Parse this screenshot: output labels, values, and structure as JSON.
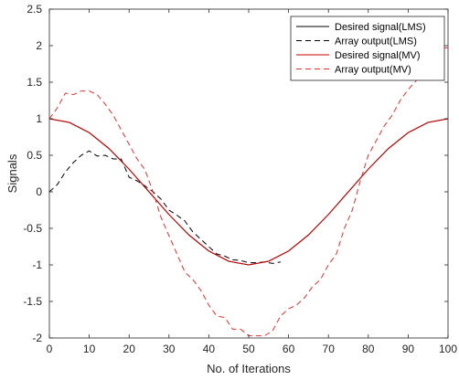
{
  "chart_data": {
    "type": "line",
    "xlabel": "No. of Iterations",
    "ylabel": "Signals",
    "xlim": [
      0,
      100
    ],
    "ylim": [
      -2,
      2.5
    ],
    "xticks": [
      0,
      10,
      20,
      30,
      40,
      50,
      60,
      70,
      80,
      90,
      100
    ],
    "yticks": [
      -2,
      -1.5,
      -1,
      -0.5,
      0,
      0.5,
      1,
      1.5,
      2,
      2.5
    ],
    "grid": false,
    "legend_position": "top-right",
    "series": [
      {
        "name": "Desired signal(LMS)",
        "color": "#000000",
        "style": "solid",
        "x": [
          0,
          5,
          10,
          15,
          20,
          25,
          30,
          35,
          40,
          45,
          50,
          55,
          60,
          65,
          70,
          75,
          80,
          85,
          90,
          95,
          100
        ],
        "y": [
          1,
          0.95,
          0.81,
          0.59,
          0.31,
          0,
          -0.31,
          -0.59,
          -0.81,
          -0.95,
          -1,
          -0.95,
          -0.81,
          -0.59,
          -0.31,
          0,
          0.31,
          0.59,
          0.81,
          0.95,
          1
        ]
      },
      {
        "name": "Array output(LMS)",
        "color": "#000000",
        "style": "dashed",
        "x": [
          0,
          2,
          4,
          6,
          8,
          10,
          12,
          14,
          16,
          18,
          20,
          22,
          24,
          26,
          28,
          30,
          32,
          34,
          36,
          38,
          40,
          42,
          44,
          46,
          48,
          50,
          52,
          54,
          56,
          58
        ],
        "y": [
          0,
          0.1,
          0.27,
          0.4,
          0.5,
          0.56,
          0.49,
          0.5,
          0.45,
          0.45,
          0.2,
          0.15,
          0.08,
          0.0,
          -0.1,
          -0.25,
          -0.32,
          -0.4,
          -0.55,
          -0.65,
          -0.75,
          -0.85,
          -0.88,
          -0.93,
          -0.94,
          -0.97,
          -0.97,
          -0.96,
          -0.98,
          -0.96
        ]
      },
      {
        "name": "Desired signal(MV)",
        "color": "#cc0000",
        "style": "solid",
        "x": [
          0,
          5,
          10,
          15,
          20,
          25,
          30,
          35,
          40,
          45,
          50,
          55,
          60,
          65,
          70,
          75,
          80,
          85,
          90,
          95,
          100
        ],
        "y": [
          1,
          0.95,
          0.81,
          0.59,
          0.31,
          0,
          -0.31,
          -0.59,
          -0.81,
          -0.95,
          -1,
          -0.95,
          -0.81,
          -0.59,
          -0.31,
          0,
          0.31,
          0.59,
          0.81,
          0.95,
          1
        ]
      },
      {
        "name": "Array output(MV)",
        "color": "#e03030",
        "style": "dashed",
        "x": [
          0,
          2,
          4,
          6,
          8,
          10,
          12,
          14,
          16,
          18,
          20,
          22,
          24,
          26,
          28,
          30,
          32,
          34,
          36,
          38,
          40,
          42,
          44,
          46,
          48,
          50,
          52,
          54,
          56,
          58,
          60,
          62,
          64,
          66,
          68,
          70,
          72,
          74,
          76,
          78,
          80,
          82,
          84,
          86,
          88,
          90,
          92,
          94,
          96,
          98,
          100
        ],
        "y": [
          1.0,
          1.15,
          1.35,
          1.33,
          1.38,
          1.38,
          1.33,
          1.2,
          1.05,
          0.85,
          0.65,
          0.45,
          0.3,
          0.0,
          -0.35,
          -0.6,
          -0.85,
          -1.1,
          -1.2,
          -1.35,
          -1.55,
          -1.7,
          -1.72,
          -1.88,
          -1.88,
          -1.97,
          -1.97,
          -1.97,
          -1.9,
          -1.7,
          -1.6,
          -1.55,
          -1.45,
          -1.3,
          -1.2,
          -1.0,
          -0.85,
          -0.5,
          -0.25,
          0.15,
          0.5,
          0.7,
          0.9,
          1.05,
          1.25,
          1.4,
          1.52,
          1.65,
          1.78,
          1.97,
          1.97
        ]
      }
    ]
  }
}
